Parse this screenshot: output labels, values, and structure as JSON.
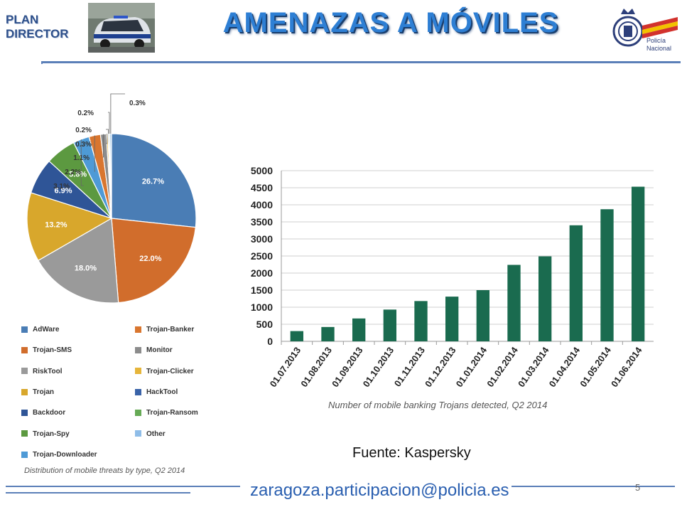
{
  "header": {
    "plan_line1": "PLAN",
    "plan_line2": "DIRECTOR",
    "title": "AMENAZAS A MÓVILES",
    "logo_text_line1": "Policía",
    "logo_text_line2": "Nacional",
    "accent_color": "#2e7fd4",
    "rule_color": "#5b7fb8"
  },
  "footer": {
    "source": "Fuente: Kaspersky",
    "email": "zaragoza.participacion@policia.es",
    "page_number": "5"
  },
  "chart_data": [
    {
      "type": "pie",
      "caption": "Distribution of mobile threats by type, Q2 2014",
      "slices": [
        {
          "name": "AdWare",
          "value": 26.7,
          "label": "26.7%",
          "color": "#4a7db5"
        },
        {
          "name": "Trojan-SMS",
          "value": 22.0,
          "label": "22.0%",
          "color": "#d16d2c"
        },
        {
          "name": "RiskTool",
          "value": 18.0,
          "label": "18.0%",
          "color": "#9a9a9a"
        },
        {
          "name": "Trojan",
          "value": 13.2,
          "label": "13.2%",
          "color": "#d8a72c"
        },
        {
          "name": "Backdoor",
          "value": 6.9,
          "label": "6.9%",
          "color": "#2f5597"
        },
        {
          "name": "Trojan-Spy",
          "value": 5.8,
          "label": "5.8%",
          "color": "#5c9940"
        },
        {
          "name": "Trojan-Downloader",
          "value": 3.1,
          "label": "3.1%",
          "color": "#4e9ad6"
        },
        {
          "name": "Trojan-Banker",
          "value": 2.2,
          "label": "2.2%",
          "color": "#d9762f"
        },
        {
          "name": "Monitor",
          "value": 1.1,
          "label": "1.1%",
          "color": "#8c8c8c"
        },
        {
          "name": "Trojan-Clicker",
          "value": 0.3,
          "label": "0.3%",
          "color": "#e6b53a"
        },
        {
          "name": "HackTool",
          "value": 0.2,
          "label": "0.2%",
          "color": "#3a63a8"
        },
        {
          "name": "Trojan-Ransom",
          "value": 0.2,
          "label": "0.2%",
          "color": "#66aa55"
        },
        {
          "name": "Other",
          "value": 0.3,
          "label": "0.3%",
          "color": "#8fbde8"
        }
      ],
      "legend": [
        [
          "AdWare",
          "Trojan-Banker"
        ],
        [
          "Trojan-SMS",
          "Monitor"
        ],
        [
          "RiskTool",
          "Trojan-Clicker"
        ],
        [
          "Trojan",
          "HackTool"
        ],
        [
          "Backdoor",
          "Trojan-Ransom"
        ],
        [
          "Trojan-Spy",
          "Other"
        ],
        [
          "Trojan-Downloader"
        ]
      ]
    },
    {
      "type": "bar",
      "caption": "Number of mobile banking Trojans detected, Q2 2014",
      "categories": [
        "01.07.2013",
        "01.08.2013",
        "01.09.2013",
        "01.10.2013",
        "01.11.2013",
        "01.12.2013",
        "01.01.2014",
        "01.02.2014",
        "01.03.2014",
        "01.04.2014",
        "01.05.2014",
        "01.06.2014"
      ],
      "values": [
        300,
        420,
        670,
        930,
        1180,
        1310,
        1500,
        2240,
        2490,
        3400,
        3870,
        4530
      ],
      "ylim": [
        0,
        5000
      ],
      "yticks": [
        "0",
        "500",
        "1000",
        "1500",
        "2000",
        "2500",
        "3000",
        "3500",
        "4000",
        "4500",
        "5000"
      ],
      "grid": true,
      "bar_color": "#1a6b4f",
      "xlabel": "",
      "ylabel": ""
    }
  ]
}
